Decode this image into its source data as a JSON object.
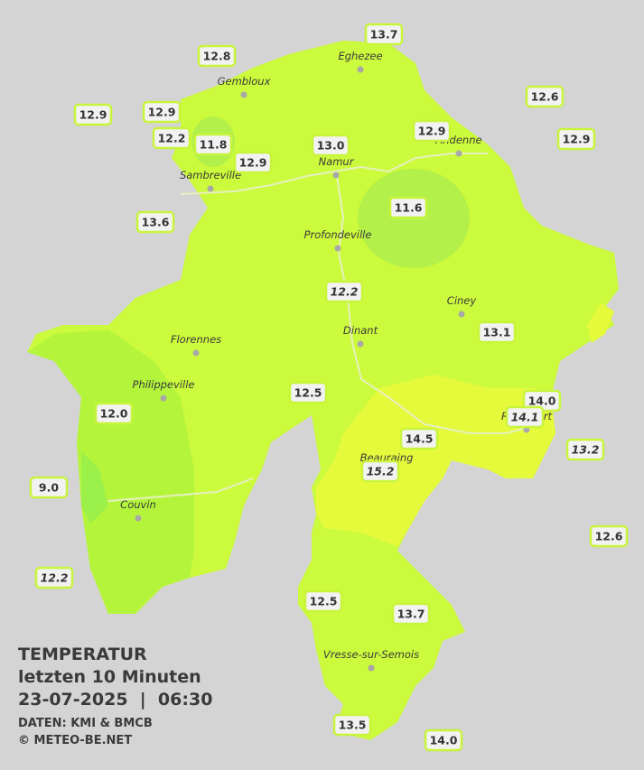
{
  "title": "TEMPERATUR",
  "subtitle": "letzten 10 Minuten",
  "datetime": "23-07-2025  |  06:30",
  "source": "DATEN: KMI & BMCB",
  "copyright": "© METEO-BE.NET",
  "cities": [
    "Eghezee",
    "Gembloux",
    "Andenne",
    "Namur",
    "Sambreville",
    "Profondeville",
    "Ciney",
    "Dinant",
    "Florennes",
    "Philippeville",
    "Beauraing",
    "Couvin",
    "Rochefort",
    "Vresse-sur-Semois"
  ],
  "stations": [
    "12.8",
    "13.7",
    "12.6",
    "12.9",
    "12.9",
    "12.2",
    "11.8",
    "12.9",
    "13.0",
    "12.9",
    "12.9",
    "13.6",
    "11.6",
    "12.2",
    "13.1",
    "12.5",
    "14.0",
    "14.1",
    "12.0",
    "14.5",
    "13.2",
    "15.2",
    "9.0",
    "12.6",
    "12.2",
    "12.5",
    "13.7",
    "13.5",
    "14.0"
  ]
}
